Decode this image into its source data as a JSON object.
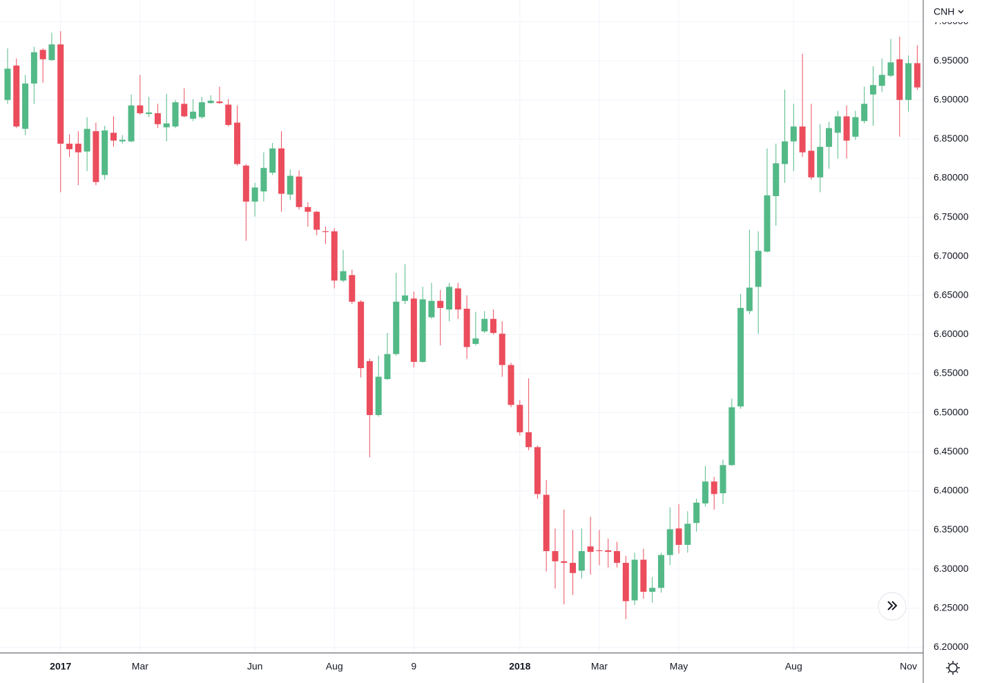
{
  "chart_data": {
    "type": "candlestick",
    "title": "CNH",
    "up_color": "#53b987",
    "down_color": "#eb4d5c",
    "grid": true,
    "categories": [
      null,
      null,
      null,
      null,
      null,
      null,
      null,
      null,
      null,
      null,
      null,
      null,
      null,
      null,
      null,
      null,
      null,
      null,
      null,
      null,
      null,
      null,
      null,
      null,
      null,
      null,
      null,
      null,
      null,
      null,
      null,
      null,
      null,
      null,
      null,
      null,
      null,
      null,
      null,
      null,
      null,
      null,
      null,
      null,
      null,
      null,
      null,
      null,
      null,
      null,
      null,
      null,
      null,
      null,
      null,
      null,
      null,
      null,
      null,
      null,
      null,
      null,
      null,
      null,
      null,
      null,
      null,
      null,
      null,
      null,
      null,
      null,
      null,
      null,
      null,
      null,
      null,
      null,
      null,
      null,
      null,
      null,
      null,
      null,
      null,
      null,
      null,
      null,
      null,
      null,
      null,
      null,
      null,
      null,
      null,
      null,
      null,
      null,
      null,
      null,
      null,
      null,
      null,
      null
    ],
    "open": [
      6.9,
      6.944,
      6.863,
      6.921,
      6.964,
      6.951,
      6.971,
      6.844,
      6.844,
      6.834,
      6.86,
      6.804,
      6.858,
      6.847,
      6.847,
      6.893,
      6.882,
      6.883,
      6.865,
      6.866,
      6.895,
      6.876,
      6.878,
      6.896,
      6.898,
      6.894,
      6.871,
      6.816,
      6.77,
      6.783,
      6.807,
      6.838,
      6.779,
      6.802,
      6.763,
      6.757,
      6.732,
      6.732,
      6.669,
      6.676,
      6.642,
      6.566,
      6.497,
      6.543,
      6.575,
      6.643,
      6.646,
      6.565,
      6.622,
      6.643,
      6.632,
      6.659,
      6.633,
      6.588,
      6.604,
      6.62,
      6.601,
      6.561,
      6.51,
      6.475,
      6.456,
      6.395,
      6.323,
      6.31,
      6.308,
      6.298,
      6.329,
      6.324,
      6.324,
      6.323,
      6.308,
      6.26,
      6.312,
      6.271,
      6.276,
      6.318,
      6.352,
      6.331,
      6.359,
      6.384,
      6.412,
      6.397,
      6.433,
      6.508,
      6.63,
      6.661,
      6.706,
      6.777,
      6.818,
      6.847,
      6.866,
      6.835,
      6.801,
      6.84,
      6.858,
      6.879,
      6.853,
      6.873,
      6.907,
      6.918,
      6.931,
      6.952,
      6.9,
      6.947
    ],
    "high": [
      6.966,
      6.953,
      6.932,
      6.968,
      6.966,
      6.986,
      6.988,
      6.856,
      6.86,
      6.878,
      6.871,
      6.867,
      6.879,
      6.855,
      6.907,
      6.932,
      6.904,
      6.895,
      6.908,
      6.9,
      6.915,
      6.901,
      6.904,
      6.906,
      6.917,
      6.901,
      6.893,
      6.818,
      6.794,
      6.833,
      6.845,
      6.86,
      6.811,
      6.81,
      6.769,
      6.758,
      6.738,
      6.736,
      6.708,
      6.683,
      6.644,
      6.569,
      6.573,
      6.602,
      6.679,
      6.69,
      6.655,
      6.661,
      6.666,
      6.657,
      6.666,
      6.666,
      6.65,
      6.629,
      6.63,
      6.632,
      6.617,
      6.564,
      6.516,
      6.544,
      6.458,
      6.414,
      6.352,
      6.376,
      6.35,
      6.352,
      6.367,
      6.35,
      6.339,
      6.335,
      6.317,
      6.321,
      6.326,
      6.29,
      6.321,
      6.379,
      6.383,
      6.374,
      6.39,
      6.432,
      6.418,
      6.44,
      6.518,
      6.652,
      6.734,
      6.732,
      6.838,
      6.844,
      6.913,
      6.895,
      6.959,
      6.895,
      6.869,
      6.872,
      6.886,
      6.893,
      6.886,
      6.917,
      6.943,
      6.953,
      6.978,
      6.981,
      6.957,
      6.97
    ],
    "low": [
      6.895,
      6.864,
      6.855,
      6.895,
      6.922,
      6.95,
      6.782,
      6.827,
      6.791,
      6.809,
      6.791,
      6.798,
      6.84,
      6.844,
      6.846,
      6.881,
      6.878,
      6.864,
      6.847,
      6.864,
      6.878,
      6.873,
      6.876,
      6.895,
      6.895,
      6.866,
      6.816,
      6.72,
      6.751,
      6.77,
      6.804,
      6.757,
      6.772,
      6.76,
      6.738,
      6.727,
      6.716,
      6.659,
      6.667,
      6.639,
      6.545,
      6.443,
      6.495,
      6.542,
      6.573,
      6.639,
      6.558,
      6.564,
      6.62,
      6.586,
      6.617,
      6.62,
      6.569,
      6.586,
      6.602,
      6.6,
      6.546,
      6.507,
      6.471,
      6.452,
      6.39,
      6.297,
      6.275,
      6.255,
      6.267,
      6.288,
      6.293,
      6.305,
      6.302,
      6.302,
      6.236,
      6.254,
      6.262,
      6.257,
      6.27,
      6.305,
      6.32,
      6.321,
      6.348,
      6.38,
      6.376,
      6.383,
      6.432,
      6.505,
      6.626,
      6.601,
      6.705,
      6.739,
      6.794,
      6.809,
      6.827,
      6.798,
      6.782,
      6.812,
      6.825,
      6.825,
      6.849,
      6.87,
      6.867,
      6.91,
      6.929,
      6.853,
      6.885,
      6.913
    ],
    "close": [
      6.94,
      6.866,
      6.921,
      6.961,
      6.952,
      6.971,
      6.844,
      6.837,
      6.833,
      6.863,
      6.795,
      6.861,
      6.848,
      6.849,
      6.893,
      6.883,
      6.884,
      6.869,
      6.87,
      6.897,
      6.879,
      6.885,
      6.897,
      6.899,
      6.896,
      6.868,
      6.818,
      6.77,
      6.788,
      6.813,
      6.838,
      6.78,
      6.803,
      6.763,
      6.757,
      6.734,
      6.731,
      6.669,
      6.681,
      6.642,
      6.557,
      6.497,
      6.546,
      6.575,
      6.642,
      6.65,
      6.565,
      6.645,
      6.643,
      6.634,
      6.661,
      6.632,
      6.584,
      6.595,
      6.62,
      6.602,
      6.561,
      6.51,
      6.475,
      6.456,
      6.396,
      6.323,
      6.31,
      6.308,
      6.295,
      6.323,
      6.322,
      6.323,
      6.322,
      6.308,
      6.259,
      6.312,
      6.271,
      6.276,
      6.318,
      6.351,
      6.331,
      6.358,
      6.385,
      6.412,
      6.396,
      6.433,
      6.507,
      6.634,
      6.66,
      6.707,
      6.778,
      6.819,
      6.847,
      6.866,
      6.833,
      6.801,
      6.84,
      6.864,
      6.879,
      6.848,
      6.878,
      6.895,
      6.919,
      6.932,
      6.948,
      6.9,
      6.947,
      6.916
    ],
    "ylim": [
      6.1932,
      7.0278
    ],
    "yticks": [
      {
        "value": 6.2,
        "label": "6.20000"
      },
      {
        "value": 6.25,
        "label": "6.25000"
      },
      {
        "value": 6.3,
        "label": "6.30000"
      },
      {
        "value": 6.35,
        "label": "6.35000"
      },
      {
        "value": 6.4,
        "label": "6.40000"
      },
      {
        "value": 6.45,
        "label": "6.45000"
      },
      {
        "value": 6.5,
        "label": "6.50000"
      },
      {
        "value": 6.55,
        "label": "6.55000"
      },
      {
        "value": 6.6,
        "label": "6.60000"
      },
      {
        "value": 6.65,
        "label": "6.65000"
      },
      {
        "value": 6.7,
        "label": "6.70000"
      },
      {
        "value": 6.75,
        "label": "6.75000"
      },
      {
        "value": 6.8,
        "label": "6.80000"
      },
      {
        "value": 6.85,
        "label": "6.85000"
      },
      {
        "value": 6.9,
        "label": "6.90000"
      },
      {
        "value": 6.95,
        "label": "6.95000"
      },
      {
        "value": 7.0,
        "label": "7.00000"
      }
    ],
    "xticks": [
      {
        "value": 6,
        "label": "2017"
      },
      {
        "value": 15,
        "label": "Mar"
      },
      {
        "value": 28,
        "label": "Jun"
      },
      {
        "value": 37,
        "label": "Aug"
      },
      {
        "value": 46,
        "label": "9"
      },
      {
        "value": 58,
        "label": "2018"
      },
      {
        "value": 67,
        "label": "Mar"
      },
      {
        "value": 76,
        "label": "May"
      },
      {
        "value": 89,
        "label": "Aug"
      },
      {
        "value": 102,
        "label": "Nov"
      }
    ]
  }
}
